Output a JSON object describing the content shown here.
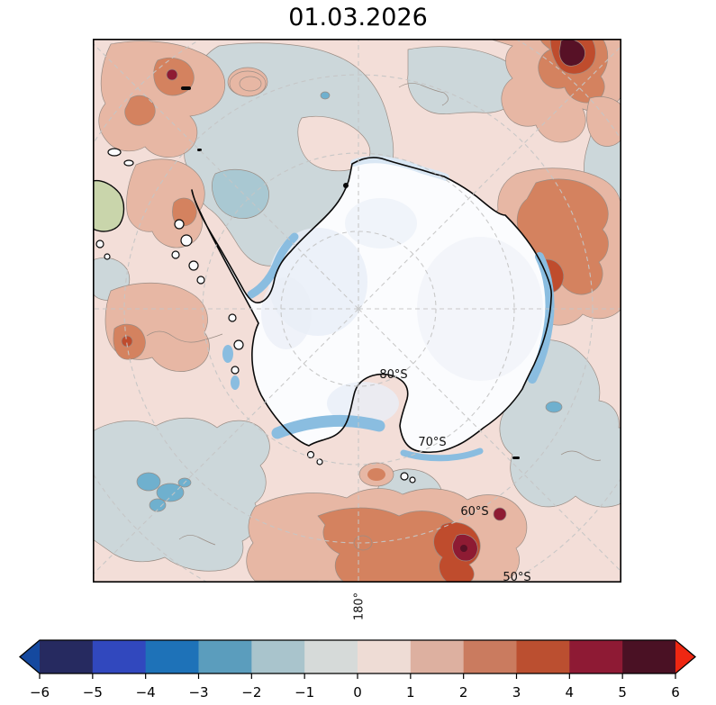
{
  "figure": {
    "title": "01.03.2026"
  },
  "palette": {
    "anom-p0": "#f3ded8",
    "anom-p1": "#e7b7a4",
    "anom-p2": "#d4825f",
    "anom-p3": "#bf4c2d",
    "anom-p4": "#8e1b33",
    "anom-p5": "#571126",
    "anom-m0": "#ccd7da",
    "anom-m1": "#a9c8d2",
    "anom-m2": "#6fb0ce",
    "contour": "#9a8d85",
    "grid": "#c6c6c6",
    "coast": "#0a0a0a",
    "ice": "#fbfcfe",
    "ice-shade": "#e9eef7",
    "seaice": "#8abde0",
    "seaice-light": "#d9e7f4",
    "land-green": "#c9d5ab"
  },
  "chart_data": {
    "type": "heatmap",
    "title": "01.03.2026",
    "projection": "south polar stereographic map of Antarctica with filled anomaly contours",
    "gridlines": {
      "latitude_circles": [
        "80°S",
        "70°S",
        "60°S",
        "50°S"
      ],
      "meridian_interval_deg": 45,
      "style": "dashed light gray"
    },
    "gridline_labels": {
      "latitudes": [
        "80°S",
        "70°S",
        "60°S",
        "50°S"
      ],
      "longitude_bottom": "180°"
    },
    "colorbar": {
      "orientation": "horizontal",
      "position": "bottom",
      "extend": "both",
      "ticks": [
        -6,
        -5,
        -4,
        -3,
        -2,
        -1,
        0,
        1,
        2,
        3,
        4,
        5,
        6
      ],
      "tick_labels": [
        "−6",
        "−5",
        "−4",
        "−3",
        "−2",
        "−1",
        "0",
        "1",
        "2",
        "3",
        "4",
        "5",
        "6"
      ],
      "segment_colors": [
        "#262a60",
        "#3148be",
        "#1e72b8",
        "#5b9dbd",
        "#a9c4cc",
        "#d6dad9",
        "#eedcd5",
        "#ddb0a0",
        "#ca7b5f",
        "#bb4f30",
        "#8e1a34",
        "#4a1124"
      ],
      "under_color": "#15499f",
      "over_color": "#ee2712"
    },
    "notable_regions_read_from_map": [
      {
        "area": "most of Southern Ocean",
        "anomaly": "0 to +1"
      },
      {
        "area": "north-east corner",
        "anomaly": "+3 to +6 (dark red core)"
      },
      {
        "area": "east of Antarctica (right of bulge)",
        "anomaly": "+1 to +3"
      },
      {
        "area": "south-east sector near 50-60°S",
        "anomaly": "+2 to +5 cluster"
      },
      {
        "area": "north-west and south-west patches",
        "anomaly": "-1 to 0 (gray), spots -2 to -3"
      },
      {
        "area": "Antarctic continent and shelves",
        "anomaly": "ice, shown white with black coastline"
      },
      {
        "area": "coastal fringes (Ross, Weddell, east coast)",
        "anomaly": "sea-ice blue bands"
      }
    ]
  }
}
